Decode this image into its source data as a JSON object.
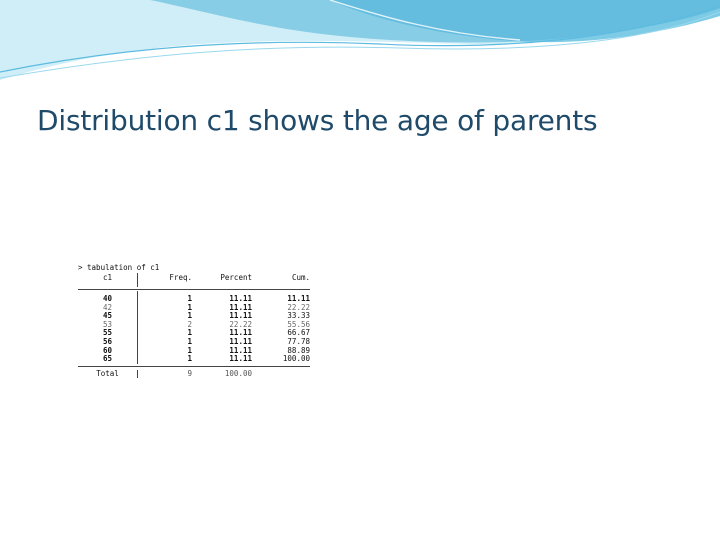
{
  "slide": {
    "title": "Distribution c1 shows the age of parents"
  },
  "stata": {
    "command": "> tabulation of c1",
    "headers": {
      "var": "c1",
      "freq": "Freq.",
      "percent": "Percent",
      "cum": "Cum."
    },
    "rows": [
      {
        "value": "40",
        "freq": "1",
        "percent": "11.11",
        "cum": "11.11"
      },
      {
        "value": "42",
        "freq": "1",
        "percent": "11.11",
        "cum": "22.22"
      },
      {
        "value": "45",
        "freq": "1",
        "percent": "11.11",
        "cum": "33.33"
      },
      {
        "value": "53",
        "freq": "2",
        "percent": "22.22",
        "cum": "55.56"
      },
      {
        "value": "55",
        "freq": "1",
        "percent": "11.11",
        "cum": "66.67"
      },
      {
        "value": "56",
        "freq": "1",
        "percent": "11.11",
        "cum": "77.78"
      },
      {
        "value": "60",
        "freq": "1",
        "percent": "11.11",
        "cum": "88.89"
      },
      {
        "value": "65",
        "freq": "1",
        "percent": "11.11",
        "cum": "100.00"
      }
    ],
    "total": {
      "label": "Total",
      "freq": "9",
      "percent": "100.00"
    }
  },
  "colors": {
    "title": "#1f4a69",
    "banner_light": "#d9f1f8",
    "banner_mid": "#8fd3ea",
    "banner_dark": "#3aa7cf"
  }
}
